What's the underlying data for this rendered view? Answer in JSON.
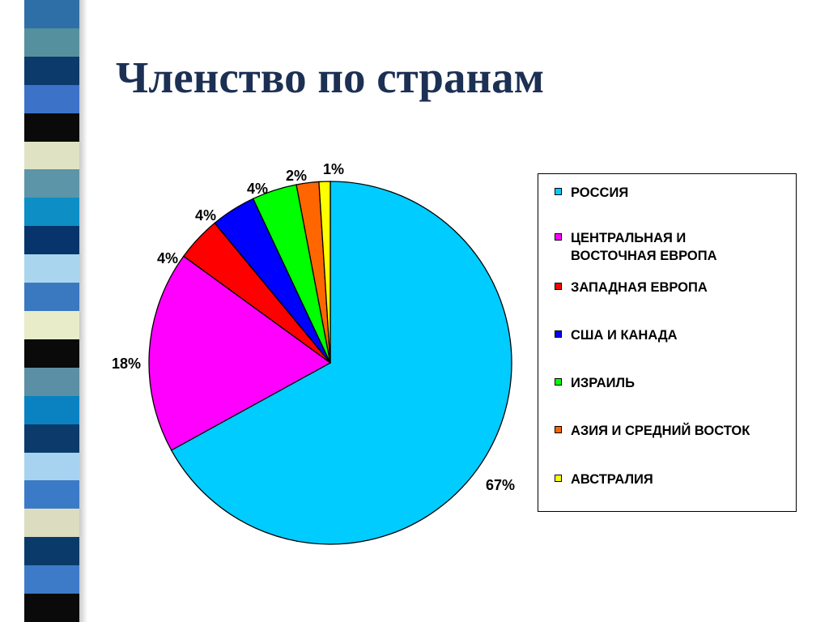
{
  "title": "Членство по странам",
  "stripe_colors": [
    "#2f6fa8",
    "#55909e",
    "#0b3a6b",
    "#3d72c9",
    "#0a0a0a",
    "#e0e3c3",
    "#5c94a8",
    "#0d8ec4",
    "#06346b",
    "#a9d5ee",
    "#3a78c0",
    "#e8ecc8",
    "#0a0a0a",
    "#5b8fa5",
    "#0a82c2",
    "#0b3a6b",
    "#a7d3f0",
    "#3b7ac6",
    "#dcdcc0",
    "#0a3a6a",
    "#3d7bc9",
    "#0a0a0a"
  ],
  "chart_data": {
    "type": "pie",
    "title": "",
    "categories": [
      "РОССИЯ",
      "ЦЕНТРАЛЬНАЯ И\nВОСТОЧНАЯ  ЕВРОПА",
      "ЗАПАДНАЯ ЕВРОПА",
      "США И КАНАДА",
      "ИЗРАИЛЬ",
      "АЗИЯ И СРЕДНИЙ ВОСТОК",
      "АВСТРАЛИЯ"
    ],
    "values": [
      67,
      18,
      4,
      4,
      4,
      2,
      1
    ],
    "data_labels": [
      "67%",
      "18%",
      "4%",
      "4%",
      "4%",
      "2%",
      "1%"
    ],
    "colors": [
      "#00ccff",
      "#ff00ff",
      "#ff0000",
      "#0000ff",
      "#00ff00",
      "#ff6600",
      "#ffff00"
    ],
    "start_angle": "12 o'clock",
    "direction": "clockwise",
    "legend_position": "right"
  }
}
